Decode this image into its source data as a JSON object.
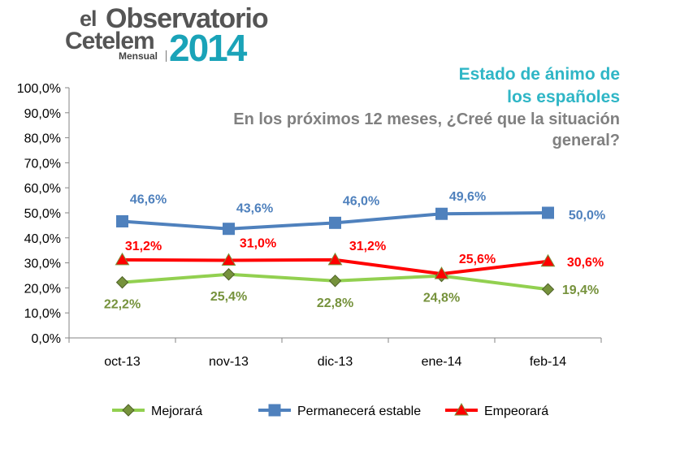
{
  "logo": {
    "el": "el",
    "observatorio": "Observatorio",
    "cetelem": "Cetelem",
    "mensual": "Mensual",
    "year": "2014"
  },
  "title_lines": [
    "Estado de ánimo de",
    "los españoles",
    "En los próximos 12 meses, ¿Creé que la situación",
    "general?"
  ],
  "chart_data": {
    "type": "line",
    "categories": [
      "oct-13",
      "nov-13",
      "dic-13",
      "ene-14",
      "feb-14"
    ],
    "ylim": [
      0,
      100
    ],
    "yticks": [
      "0,0%",
      "10,0%",
      "20,0%",
      "30,0%",
      "40,0%",
      "50,0%",
      "60,0%",
      "70,0%",
      "80,0%",
      "90,0%",
      "100,0%"
    ],
    "grid": false,
    "legend": "bottom",
    "series": [
      {
        "name": "Mejorará",
        "values": [
          22.2,
          25.4,
          22.8,
          24.8,
          19.4
        ],
        "labels": [
          "22,2%",
          "25,4%",
          "22,8%",
          "24,8%",
          "19,4%"
        ],
        "line_color": "#92d050",
        "marker_color": "#76923c",
        "label_color": "#76923c",
        "marker": "diamond"
      },
      {
        "name": "Permanecerá estable",
        "values": [
          46.6,
          43.6,
          46.0,
          49.6,
          50.0
        ],
        "labels": [
          "46,6%",
          "43,6%",
          "46,0%",
          "49,6%",
          "50,0%"
        ],
        "line_color": "#4f81bd",
        "marker_color": "#4f81bd",
        "label_color": "#4f81bd",
        "marker": "square"
      },
      {
        "name": "Empeorará",
        "values": [
          31.2,
          31.0,
          31.2,
          25.6,
          30.6
        ],
        "labels": [
          "31,2%",
          "31,0%",
          "31,2%",
          "25,6%",
          "30,6%"
        ],
        "line_color": "#ff0000",
        "marker_color": "#ff0000",
        "label_color": "#ff0000",
        "marker": "triangle"
      }
    ]
  }
}
